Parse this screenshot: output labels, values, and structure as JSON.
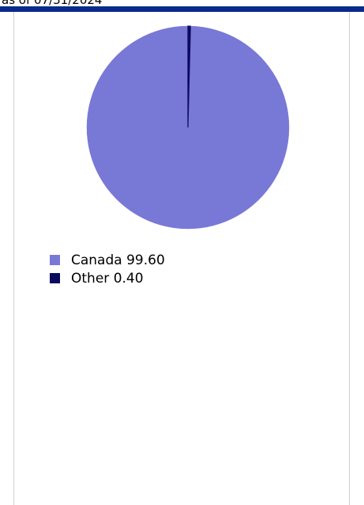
{
  "as_of_text": "as of 07/31/2024",
  "colors": {
    "accent_bar": "#0a2a8a",
    "canada": "#7878d6",
    "other": "#0a0a5e"
  },
  "chart_data": {
    "type": "pie",
    "slices": [
      {
        "label": "Canada",
        "value": 99.6,
        "value_text": "99.60",
        "color": "#7878d6"
      },
      {
        "label": "Other",
        "value": 0.4,
        "value_text": "0.40",
        "color": "#0a0a5e"
      }
    ],
    "legend_position": "bottom-left"
  }
}
